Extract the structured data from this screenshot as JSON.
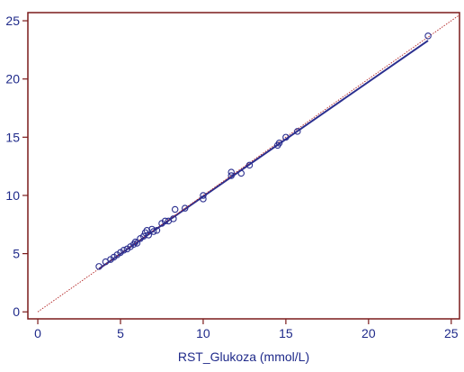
{
  "chart_data": {
    "type": "scatter",
    "title": "",
    "xlabel": "RST_Glukoza (mmol/L)",
    "ylabel": "",
    "xlim": [
      -0.6,
      25.5
    ],
    "ylim": [
      -0.6,
      25.7
    ],
    "x_ticks": [
      0,
      5,
      10,
      15,
      20,
      25
    ],
    "y_ticks": [
      0,
      5,
      10,
      15,
      20,
      25
    ],
    "x_tick_labels": [
      "0",
      "5",
      "10",
      "15",
      "20",
      "25"
    ],
    "y_tick_labels": [
      "0",
      "5",
      "10",
      "15",
      "20",
      "25"
    ],
    "grid": false,
    "colors": {
      "frame": "#7a1a1a",
      "points": "#2b2f8f",
      "fit_line": "#2b2f8f",
      "identity_line": "#b22222",
      "text": "#1f2a8a"
    },
    "series": [
      {
        "kind": "points",
        "points": [
          {
            "x": 3.7,
            "y": 3.9
          },
          {
            "x": 4.1,
            "y": 4.3
          },
          {
            "x": 4.4,
            "y": 4.5
          },
          {
            "x": 4.6,
            "y": 4.7
          },
          {
            "x": 4.8,
            "y": 4.9
          },
          {
            "x": 5.0,
            "y": 5.1
          },
          {
            "x": 5.2,
            "y": 5.3
          },
          {
            "x": 5.4,
            "y": 5.4
          },
          {
            "x": 5.6,
            "y": 5.6
          },
          {
            "x": 5.8,
            "y": 5.8
          },
          {
            "x": 5.9,
            "y": 6.0
          },
          {
            "x": 6.0,
            "y": 5.9
          },
          {
            "x": 6.2,
            "y": 6.3
          },
          {
            "x": 6.4,
            "y": 6.5
          },
          {
            "x": 6.5,
            "y": 6.8
          },
          {
            "x": 6.6,
            "y": 7.0
          },
          {
            "x": 6.7,
            "y": 6.6
          },
          {
            "x": 6.9,
            "y": 7.1
          },
          {
            "x": 7.0,
            "y": 6.9
          },
          {
            "x": 7.2,
            "y": 7.0
          },
          {
            "x": 7.5,
            "y": 7.6
          },
          {
            "x": 7.7,
            "y": 7.8
          },
          {
            "x": 7.9,
            "y": 7.8
          },
          {
            "x": 8.2,
            "y": 8.0
          },
          {
            "x": 8.3,
            "y": 8.8
          },
          {
            "x": 8.9,
            "y": 8.9
          },
          {
            "x": 10.0,
            "y": 9.7
          },
          {
            "x": 10.0,
            "y": 10.0
          },
          {
            "x": 11.7,
            "y": 11.7
          },
          {
            "x": 11.7,
            "y": 12.0
          },
          {
            "x": 12.3,
            "y": 11.9
          },
          {
            "x": 12.8,
            "y": 12.6
          },
          {
            "x": 14.5,
            "y": 14.3
          },
          {
            "x": 14.6,
            "y": 14.5
          },
          {
            "x": 15.0,
            "y": 15.0
          },
          {
            "x": 15.7,
            "y": 15.5
          },
          {
            "x": 23.6,
            "y": 23.7
          }
        ]
      },
      {
        "kind": "fit_line",
        "points": [
          {
            "x": 3.7,
            "y": 3.7
          },
          {
            "x": 23.6,
            "y": 23.3
          }
        ]
      },
      {
        "kind": "identity_line",
        "style": "dotted",
        "points": [
          {
            "x": 0,
            "y": 0
          },
          {
            "x": 25.5,
            "y": 25.5
          }
        ]
      }
    ]
  }
}
